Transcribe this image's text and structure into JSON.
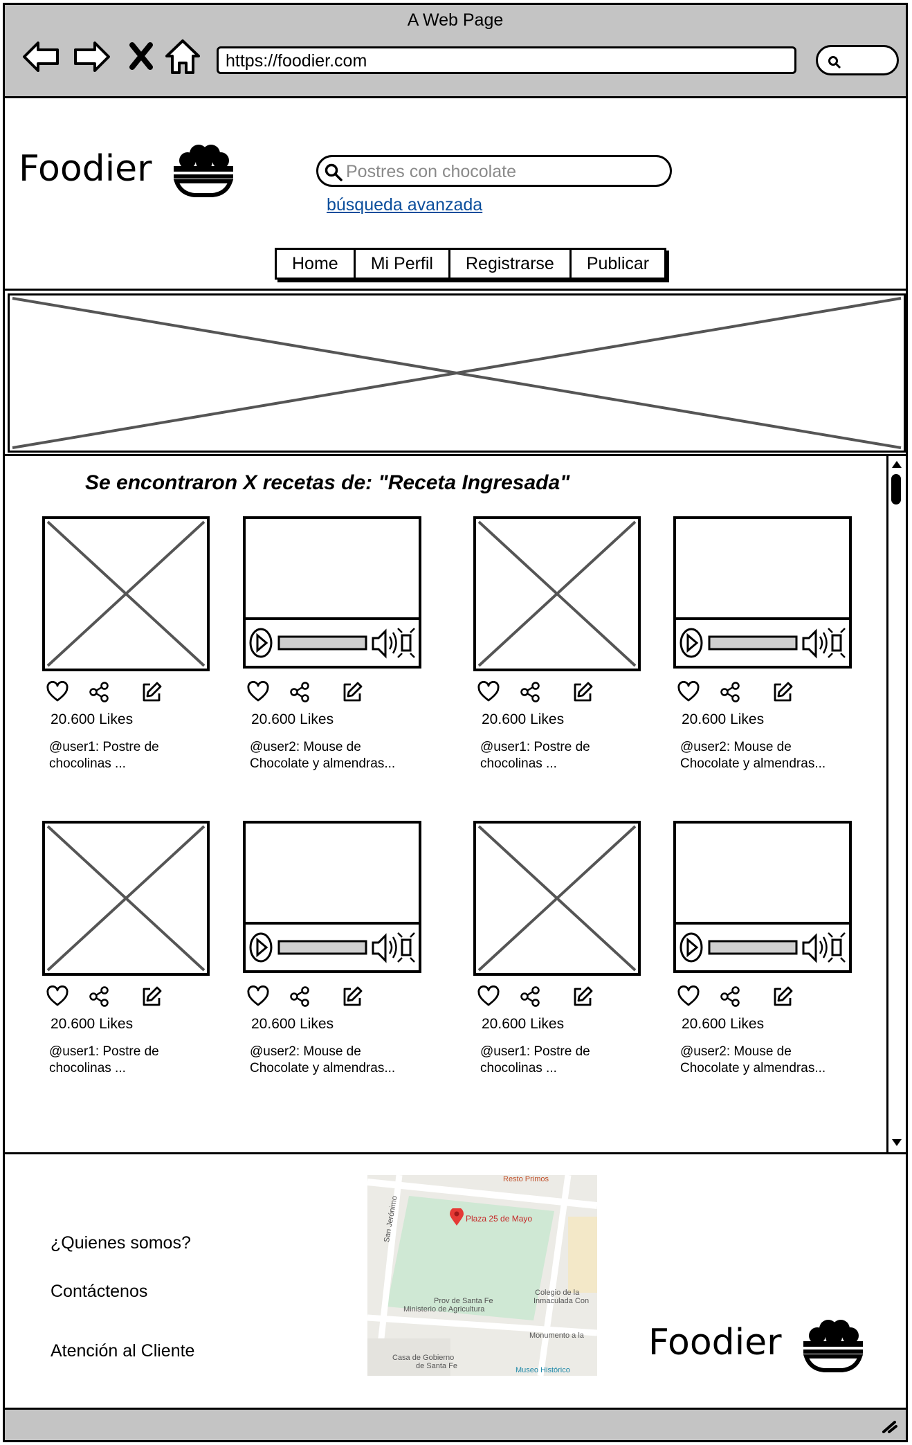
{
  "window": {
    "title": "A Web Page",
    "url": "https://foodier.com"
  },
  "header": {
    "logo": "Foodier",
    "search_placeholder": "Postres con chocolate",
    "advanced_search": "búsqueda avanzada",
    "tabs": [
      "Home",
      "Mi Perfil",
      "Registrarse",
      "Publicar"
    ]
  },
  "results": {
    "title": "Se encontraron X recetas de: \"Receta Ingresada\"",
    "cards": [
      {
        "media": "image",
        "likes": "20.600 Likes",
        "caption_line1": "@user1: Postre de",
        "caption_line2": "chocolinas ..."
      },
      {
        "media": "video",
        "likes": "20.600 Likes",
        "caption_line1": "@user2: Mouse de",
        "caption_line2": "Chocolate y almendras..."
      },
      {
        "media": "image",
        "likes": "20.600 Likes",
        "caption_line1": "@user1: Postre de",
        "caption_line2": "chocolinas ..."
      },
      {
        "media": "video",
        "likes": "20.600 Likes",
        "caption_line1": "@user2: Mouse de",
        "caption_line2": "Chocolate y almendras..."
      },
      {
        "media": "image",
        "likes": "20.600 Likes",
        "caption_line1": "@user1: Postre de",
        "caption_line2": "chocolinas ..."
      },
      {
        "media": "video",
        "likes": "20.600 Likes",
        "caption_line1": "@user2: Mouse de",
        "caption_line2": "Chocolate y almendras..."
      },
      {
        "media": "image",
        "likes": "20.600 Likes",
        "caption_line1": "@user1: Postre de",
        "caption_line2": "chocolinas ..."
      },
      {
        "media": "video",
        "likes": "20.600 Likes",
        "caption_line1": "@user2: Mouse de",
        "caption_line2": "Chocolate y almendras..."
      }
    ]
  },
  "footer": {
    "links": [
      "¿Quienes somos?",
      "Contáctenos",
      "Atención al Cliente"
    ],
    "logo": "Foodier",
    "map": {
      "labels": [
        "Plaza 25 de Mayo",
        "Resto Primos",
        "San Jerónimo",
        "Prov de Santa Fe",
        "Ministerio de Agricultura",
        "Colegio de la",
        "Inmaculada Con",
        "Monumento a la",
        "Casa de Gobierno",
        "de Santa Fe",
        "Museo Histórico"
      ]
    }
  },
  "colors": {
    "chrome": "#c4c4c4",
    "link": "#0b4e9c",
    "placeholder": "#888888",
    "map_park": "#cfe8d4",
    "map_pin": "#e53935"
  }
}
